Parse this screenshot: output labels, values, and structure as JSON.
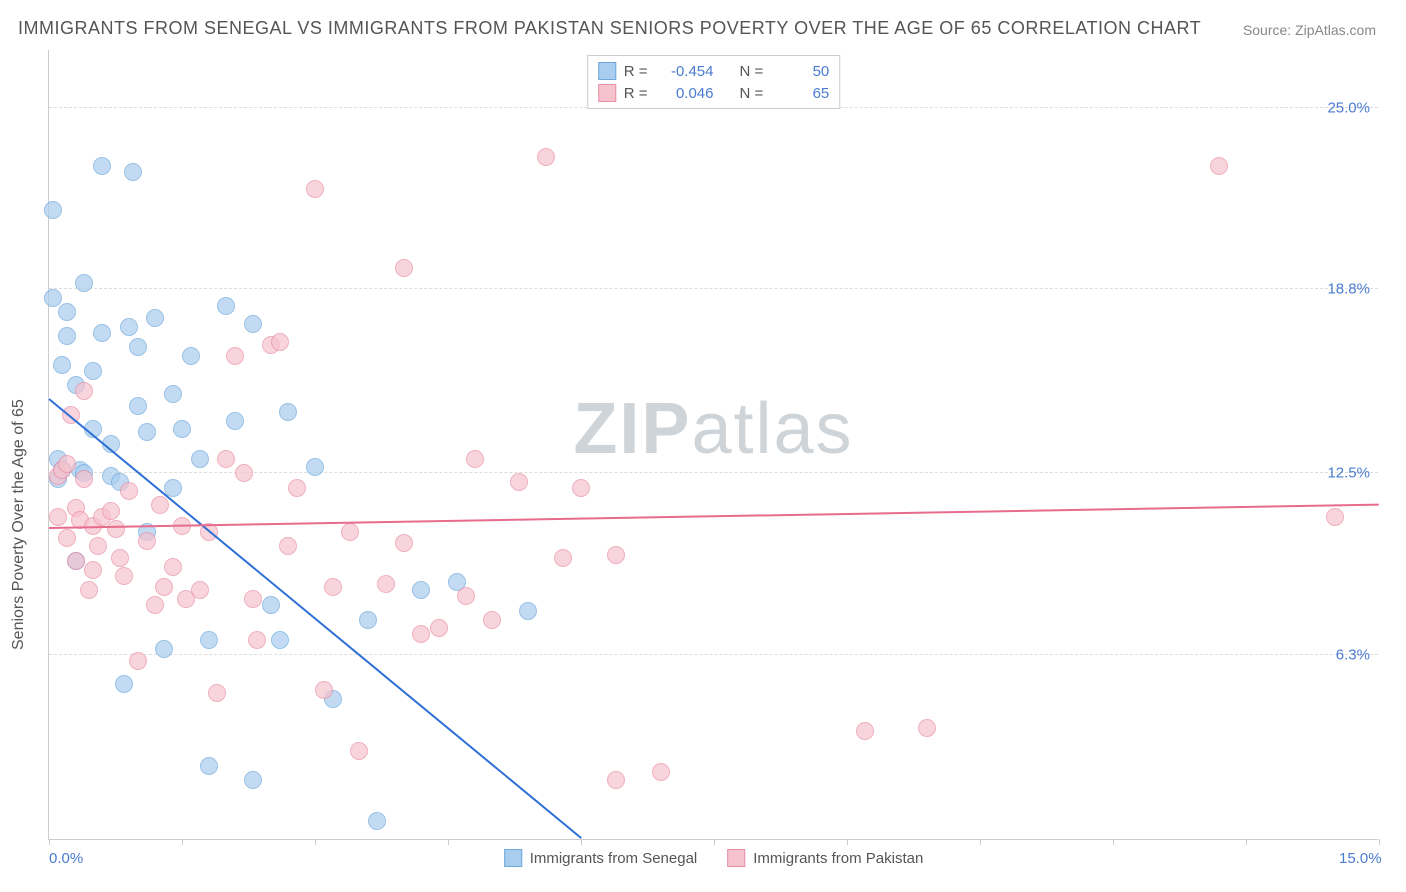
{
  "title": "IMMIGRANTS FROM SENEGAL VS IMMIGRANTS FROM PAKISTAN SENIORS POVERTY OVER THE AGE OF 65 CORRELATION CHART",
  "source": "Source: ZipAtlas.com",
  "watermark_a": "ZIP",
  "watermark_b": "atlas",
  "y_axis_label": "Seniors Poverty Over the Age of 65",
  "chart": {
    "type": "scatter",
    "xlim": [
      0,
      15
    ],
    "ylim": [
      0,
      27
    ],
    "x_ticks": [
      0,
      1.5,
      3,
      4.5,
      6,
      7.5,
      9,
      10.5,
      12,
      13.5,
      15
    ],
    "x_tick_labels": {
      "0": "0.0%",
      "15": "15.0%"
    },
    "y_gridlines": [
      6.3,
      12.5,
      18.8,
      25.0
    ],
    "y_tick_labels": [
      "6.3%",
      "12.5%",
      "18.8%",
      "25.0%"
    ],
    "background_color": "#ffffff",
    "grid_color": "#dddddd",
    "axis_color": "#cccccc",
    "title_color": "#555555",
    "tick_label_color": "#4a7bd0",
    "series": [
      {
        "name": "Immigrants from Senegal",
        "fill_color": "#a9cdee",
        "stroke_color": "#6fa8dc",
        "line_color": "#2e6fd6",
        "R": "-0.454",
        "N": "50",
        "trend": {
          "x1": 0,
          "y1": 15.0,
          "x2": 6.0,
          "y2": 0
        },
        "points": [
          [
            0.05,
            18.5
          ],
          [
            0.05,
            21.5
          ],
          [
            0.1,
            12.3
          ],
          [
            0.1,
            13.0
          ],
          [
            0.15,
            16.2
          ],
          [
            0.15,
            12.6
          ],
          [
            0.2,
            18.0
          ],
          [
            0.2,
            17.2
          ],
          [
            0.3,
            15.5
          ],
          [
            0.3,
            9.5
          ],
          [
            0.35,
            12.6
          ],
          [
            0.4,
            19.0
          ],
          [
            0.4,
            12.5
          ],
          [
            0.5,
            16.0
          ],
          [
            0.5,
            14.0
          ],
          [
            0.6,
            23.0
          ],
          [
            0.6,
            17.3
          ],
          [
            0.7,
            13.5
          ],
          [
            0.7,
            12.4
          ],
          [
            0.8,
            12.2
          ],
          [
            0.85,
            5.3
          ],
          [
            0.9,
            17.5
          ],
          [
            0.95,
            22.8
          ],
          [
            1.0,
            16.8
          ],
          [
            1.0,
            14.8
          ],
          [
            1.1,
            13.9
          ],
          [
            1.1,
            10.5
          ],
          [
            1.2,
            17.8
          ],
          [
            1.3,
            6.5
          ],
          [
            1.4,
            15.2
          ],
          [
            1.4,
            12.0
          ],
          [
            1.5,
            14.0
          ],
          [
            1.6,
            16.5
          ],
          [
            1.7,
            13.0
          ],
          [
            1.8,
            2.5
          ],
          [
            1.8,
            6.8
          ],
          [
            2.0,
            18.2
          ],
          [
            2.1,
            14.3
          ],
          [
            2.3,
            2.0
          ],
          [
            2.3,
            17.6
          ],
          [
            2.5,
            8.0
          ],
          [
            2.6,
            6.8
          ],
          [
            2.7,
            14.6
          ],
          [
            3.0,
            12.7
          ],
          [
            3.2,
            4.8
          ],
          [
            3.6,
            7.5
          ],
          [
            3.7,
            0.6
          ],
          [
            4.2,
            8.5
          ],
          [
            4.6,
            8.8
          ],
          [
            5.4,
            7.8
          ]
        ]
      },
      {
        "name": "Immigrants from Pakistan",
        "fill_color": "#f6c2ce",
        "stroke_color": "#e98fa5",
        "line_color": "#e76b8a",
        "R": "0.046",
        "N": "65",
        "trend": {
          "x1": 0,
          "y1": 10.6,
          "x2": 15,
          "y2": 11.4
        },
        "points": [
          [
            0.1,
            12.4
          ],
          [
            0.1,
            11.0
          ],
          [
            0.15,
            12.6
          ],
          [
            0.2,
            12.8
          ],
          [
            0.2,
            10.3
          ],
          [
            0.25,
            14.5
          ],
          [
            0.3,
            11.3
          ],
          [
            0.3,
            9.5
          ],
          [
            0.35,
            10.9
          ],
          [
            0.4,
            12.3
          ],
          [
            0.4,
            15.3
          ],
          [
            0.45,
            8.5
          ],
          [
            0.5,
            10.7
          ],
          [
            0.5,
            9.2
          ],
          [
            0.55,
            10.0
          ],
          [
            0.6,
            11.0
          ],
          [
            0.7,
            11.2
          ],
          [
            0.75,
            10.6
          ],
          [
            0.8,
            9.6
          ],
          [
            0.85,
            9.0
          ],
          [
            0.9,
            11.9
          ],
          [
            1.0,
            6.1
          ],
          [
            1.1,
            10.2
          ],
          [
            1.2,
            8.0
          ],
          [
            1.25,
            11.4
          ],
          [
            1.3,
            8.6
          ],
          [
            1.4,
            9.3
          ],
          [
            1.5,
            10.7
          ],
          [
            1.55,
            8.2
          ],
          [
            1.7,
            8.5
          ],
          [
            1.8,
            10.5
          ],
          [
            1.9,
            5.0
          ],
          [
            2.0,
            13.0
          ],
          [
            2.1,
            16.5
          ],
          [
            2.2,
            12.5
          ],
          [
            2.3,
            8.2
          ],
          [
            2.35,
            6.8
          ],
          [
            2.5,
            16.9
          ],
          [
            2.6,
            17.0
          ],
          [
            2.7,
            10.0
          ],
          [
            2.8,
            12.0
          ],
          [
            3.0,
            22.2
          ],
          [
            3.1,
            5.1
          ],
          [
            3.2,
            8.6
          ],
          [
            3.4,
            10.5
          ],
          [
            3.5,
            3.0
          ],
          [
            3.8,
            8.7
          ],
          [
            4.0,
            10.1
          ],
          [
            4.0,
            19.5
          ],
          [
            4.2,
            7.0
          ],
          [
            4.4,
            7.2
          ],
          [
            4.7,
            8.3
          ],
          [
            4.8,
            13.0
          ],
          [
            5.0,
            7.5
          ],
          [
            5.3,
            12.2
          ],
          [
            5.6,
            23.3
          ],
          [
            5.8,
            9.6
          ],
          [
            6.0,
            12.0
          ],
          [
            6.4,
            2.0
          ],
          [
            6.4,
            9.7
          ],
          [
            6.9,
            2.3
          ],
          [
            9.2,
            3.7
          ],
          [
            9.9,
            3.8
          ],
          [
            13.2,
            23.0
          ],
          [
            14.5,
            11.0
          ]
        ]
      }
    ]
  },
  "legend": {
    "r_label": "R =",
    "n_label": "N ="
  }
}
